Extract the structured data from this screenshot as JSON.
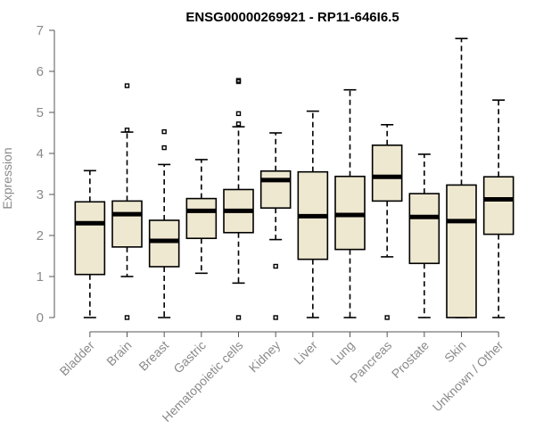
{
  "chart_data": {
    "type": "boxplot",
    "title": "ENSG00000269921 - RP11-646I6.5",
    "xlabel": "",
    "ylabel": "Expression",
    "ylim": [
      0,
      7
    ],
    "yticks": [
      0,
      1,
      2,
      3,
      4,
      5,
      6,
      7
    ],
    "grid": false,
    "categories": [
      "Bladder",
      "Brain",
      "Breast",
      "Gastric",
      "Hematopoietic cells",
      "Kidney",
      "Liver",
      "Lung",
      "Pancreas",
      "Prostate",
      "Skin",
      "Unknown / Other"
    ],
    "boxes": [
      {
        "name": "Bladder",
        "whisker_low": 0.0,
        "q1": 1.05,
        "median": 2.3,
        "q3": 2.82,
        "whisker_high": 3.58,
        "outliers": []
      },
      {
        "name": "Brain",
        "whisker_low": 1.0,
        "q1": 1.72,
        "median": 2.52,
        "q3": 2.84,
        "whisker_high": 4.52,
        "outliers": [
          0.0,
          4.57,
          5.65
        ]
      },
      {
        "name": "Breast",
        "whisker_low": 0.0,
        "q1": 1.24,
        "median": 1.87,
        "q3": 2.37,
        "whisker_high": 3.73,
        "outliers": [
          4.14,
          4.53
        ]
      },
      {
        "name": "Gastric",
        "whisker_low": 1.08,
        "q1": 1.93,
        "median": 2.6,
        "q3": 2.9,
        "whisker_high": 3.85,
        "outliers": []
      },
      {
        "name": "Hematopoietic cells",
        "whisker_low": 0.84,
        "q1": 2.07,
        "median": 2.6,
        "q3": 3.12,
        "whisker_high": 4.65,
        "outliers": [
          0.0,
          4.72,
          4.97,
          5.75,
          5.78
        ]
      },
      {
        "name": "Kidney",
        "whisker_low": 1.9,
        "q1": 2.67,
        "median": 3.35,
        "q3": 3.57,
        "whisker_high": 4.5,
        "outliers": [
          0.0,
          1.25
        ]
      },
      {
        "name": "Liver",
        "whisker_low": 0.0,
        "q1": 1.42,
        "median": 2.47,
        "q3": 3.55,
        "whisker_high": 5.03,
        "outliers": []
      },
      {
        "name": "Lung",
        "whisker_low": 0.0,
        "q1": 1.66,
        "median": 2.5,
        "q3": 3.44,
        "whisker_high": 5.55,
        "outliers": []
      },
      {
        "name": "Pancreas",
        "whisker_low": 1.48,
        "q1": 2.84,
        "median": 3.43,
        "q3": 4.2,
        "whisker_high": 4.7,
        "outliers": [
          0.0
        ]
      },
      {
        "name": "Prostate",
        "whisker_low": 0.0,
        "q1": 1.32,
        "median": 2.45,
        "q3": 3.02,
        "whisker_high": 3.98,
        "outliers": []
      },
      {
        "name": "Skin",
        "whisker_low": 0.0,
        "q1": 0.0,
        "median": 2.35,
        "q3": 3.23,
        "whisker_high": 6.8,
        "outliers": []
      },
      {
        "name": "Unknown / Other",
        "whisker_low": 0.0,
        "q1": 2.03,
        "median": 2.88,
        "q3": 3.43,
        "whisker_high": 5.3,
        "outliers": []
      }
    ]
  }
}
